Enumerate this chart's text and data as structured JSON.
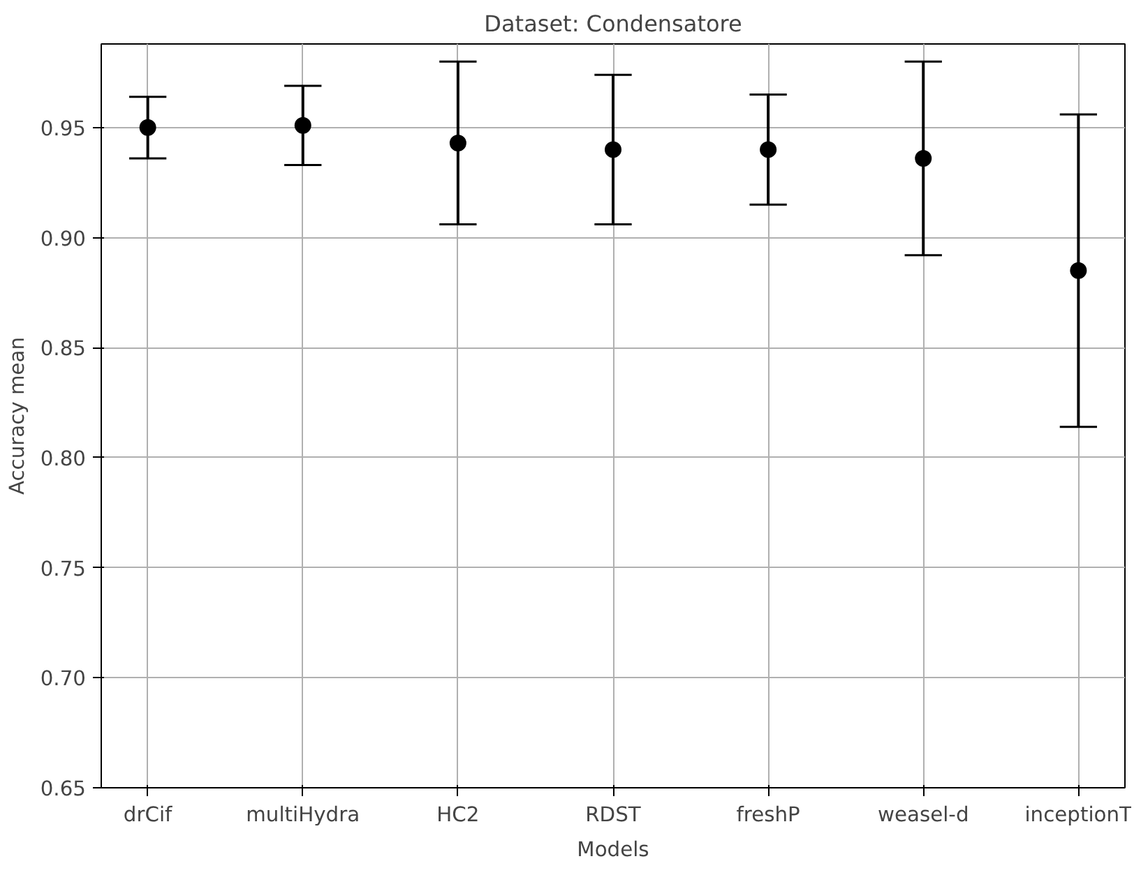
{
  "chart_data": {
    "type": "scatter",
    "title": "Dataset: Condensatore",
    "xlabel": "Models",
    "ylabel": "Accuracy mean",
    "categories": [
      "drCif",
      "multiHydra",
      "HC2",
      "RDST",
      "freshP",
      "weasel-d",
      "inceptionT"
    ],
    "series": [
      {
        "color": "#000000",
        "values": [
          0.95,
          0.951,
          0.943,
          0.94,
          0.94,
          0.936,
          0.885
        ],
        "errors": [
          0.014,
          0.018,
          0.037,
          0.034,
          0.025,
          0.044,
          0.071
        ]
      }
    ],
    "ylim": [
      0.65,
      0.988
    ],
    "yticks": [
      0.65,
      {
        "value": 0.7,
        "label": "0.70"
      },
      0.75,
      {
        "value": 0.8,
        "label": "0.80"
      },
      0.85,
      {
        "value": 0.9,
        "label": "0.90"
      },
      0.95
    ],
    "grid": true,
    "marker": "circle"
  }
}
